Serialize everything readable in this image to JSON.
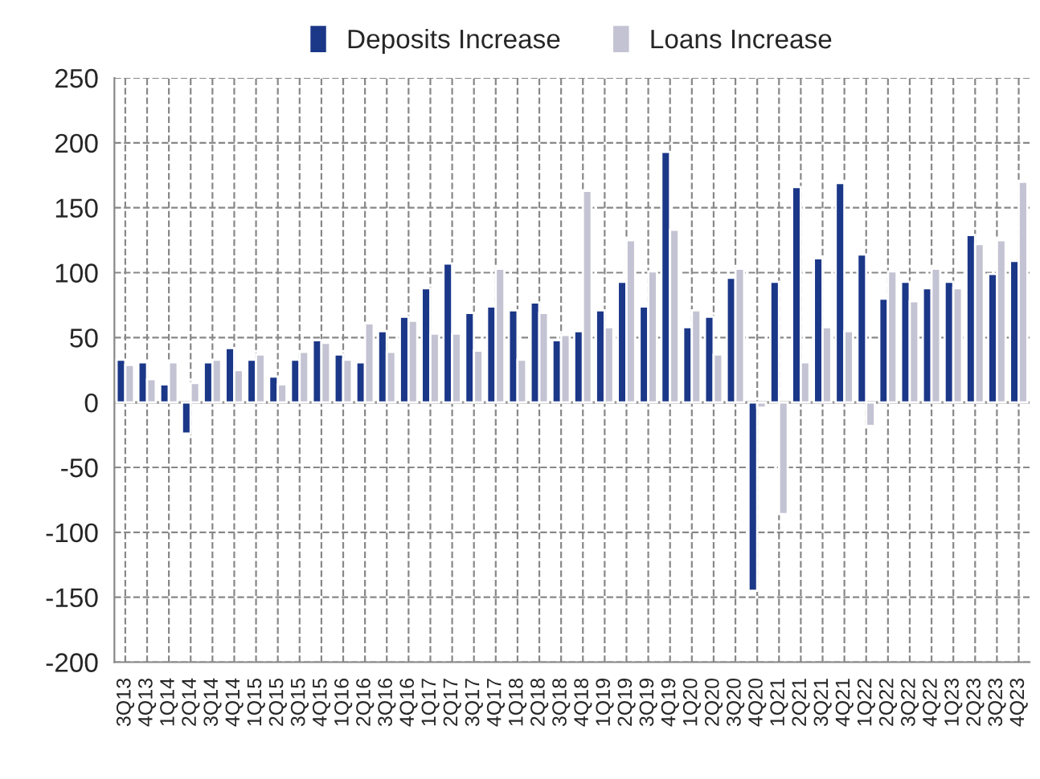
{
  "chart_data": {
    "type": "bar",
    "categories": [
      "3Q13",
      "4Q13",
      "1Q14",
      "2Q14",
      "3Q14",
      "4Q14",
      "1Q15",
      "2Q15",
      "3Q15",
      "4Q15",
      "1Q16",
      "2Q16",
      "3Q16",
      "4Q16",
      "1Q17",
      "2Q17",
      "3Q17",
      "4Q17",
      "1Q18",
      "2Q18",
      "3Q18",
      "4Q18",
      "1Q19",
      "2Q19",
      "3Q19",
      "4Q19",
      "1Q20",
      "2Q20",
      "3Q20",
      "4Q20",
      "1Q21",
      "2Q21",
      "3Q21",
      "4Q21",
      "1Q22",
      "2Q22",
      "3Q22",
      "4Q22",
      "1Q23",
      "2Q23",
      "3Q23",
      "4Q23"
    ],
    "series": [
      {
        "name": "Deposits Increase",
        "color": "#1b3788",
        "values": [
          33,
          31,
          14,
          -24,
          31,
          42,
          33,
          20,
          33,
          48,
          37,
          31,
          55,
          66,
          88,
          107,
          69,
          74,
          71,
          77,
          48,
          55,
          71,
          93,
          74,
          193,
          58,
          66,
          96,
          -145,
          93,
          166,
          111,
          169,
          114,
          80,
          93,
          88,
          93,
          129,
          99,
          109
        ]
      },
      {
        "name": "Loans Increase",
        "color": "#c3c3d3",
        "values": [
          29,
          18,
          31,
          15,
          33,
          25,
          37,
          14,
          39,
          46,
          33,
          61,
          39,
          63,
          53,
          53,
          40,
          103,
          33,
          69,
          52,
          163,
          58,
          125,
          101,
          133,
          71,
          37,
          103,
          -4,
          -86,
          31,
          58,
          55,
          -18,
          101,
          78,
          103,
          88,
          122,
          125,
          170
        ]
      }
    ],
    "ylim": [
      -200,
      250
    ],
    "yticks": [
      -200,
      -150,
      -100,
      -50,
      0,
      50,
      100,
      150,
      200,
      250
    ],
    "grid": true,
    "legend": "top"
  }
}
